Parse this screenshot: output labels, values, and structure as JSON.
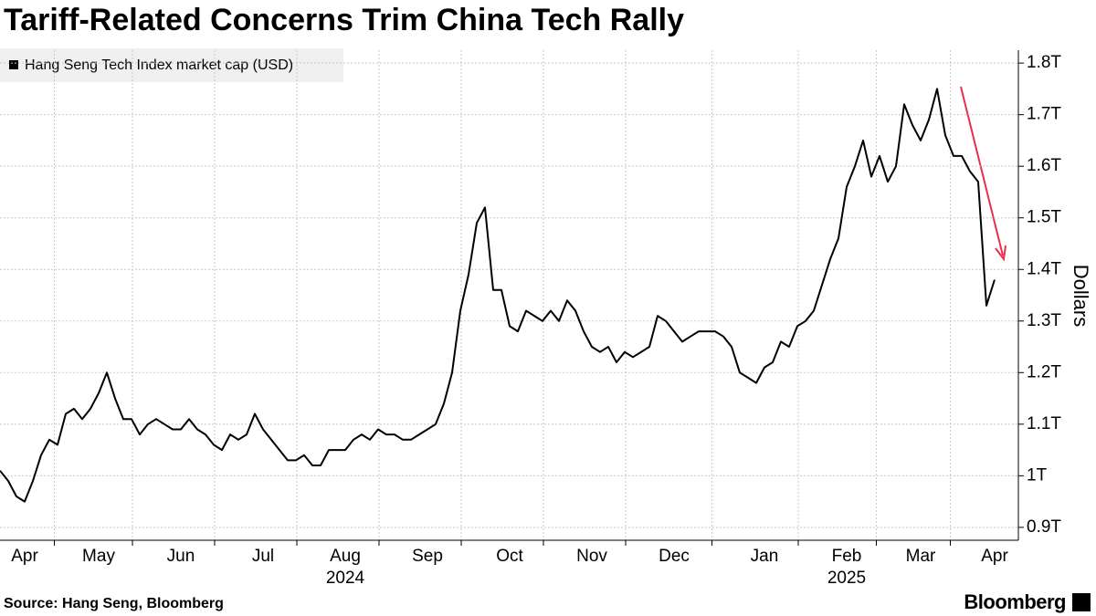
{
  "chart_data": {
    "type": "line",
    "title": "Tariff-Related Concerns Trim China Tech Rally",
    "source": "Source: Hang Seng, Bloomberg",
    "brand": "Bloomberg",
    "y_axis_label": "Dollars",
    "categories": [
      null,
      null,
      null,
      "Apr",
      null,
      null,
      null,
      null,
      null,
      null,
      null,
      null,
      "May",
      null,
      null,
      null,
      null,
      null,
      null,
      null,
      null,
      null,
      "Jun",
      null,
      null,
      null,
      null,
      null,
      null,
      null,
      null,
      null,
      "Jul",
      null,
      null,
      null,
      null,
      null,
      null,
      null,
      null,
      null,
      "Aug",
      null,
      null,
      null,
      null,
      null,
      null,
      null,
      null,
      null,
      "Sep",
      null,
      null,
      null,
      null,
      null,
      null,
      null,
      null,
      null,
      "Oct",
      null,
      null,
      null,
      null,
      null,
      null,
      null,
      null,
      null,
      "Nov",
      null,
      null,
      null,
      null,
      null,
      null,
      null,
      null,
      null,
      "Dec",
      null,
      null,
      null,
      null,
      null,
      null,
      null,
      null,
      null,
      null,
      "Jan",
      null,
      null,
      null,
      null,
      null,
      null,
      null,
      null,
      null,
      "Feb",
      null,
      null,
      null,
      null,
      null,
      null,
      null,
      null,
      "Mar",
      null,
      null,
      null,
      null,
      null,
      null,
      null,
      null,
      "Apr"
    ],
    "category_years": [
      null,
      null,
      null,
      null,
      null,
      null,
      null,
      null,
      null,
      null,
      null,
      null,
      null,
      null,
      null,
      null,
      null,
      null,
      null,
      null,
      null,
      null,
      null,
      null,
      null,
      null,
      null,
      null,
      null,
      null,
      null,
      null,
      null,
      null,
      null,
      null,
      null,
      null,
      null,
      null,
      null,
      null,
      "2024",
      null,
      null,
      null,
      null,
      null,
      null,
      null,
      null,
      null,
      null,
      null,
      null,
      null,
      null,
      null,
      null,
      null,
      null,
      null,
      null,
      null,
      null,
      null,
      null,
      null,
      null,
      null,
      null,
      null,
      null,
      null,
      null,
      null,
      null,
      null,
      null,
      null,
      null,
      null,
      null,
      null,
      null,
      null,
      null,
      null,
      null,
      null,
      null,
      null,
      null,
      null,
      null,
      null,
      null,
      null,
      null,
      null,
      null,
      null,
      null,
      "2025",
      null,
      null,
      null,
      null,
      null,
      null,
      null,
      null,
      null,
      null,
      null,
      null,
      null,
      null,
      null,
      null,
      null,
      null
    ],
    "series": [
      {
        "name": "Hang Seng Tech Index market cap (USD)",
        "color": "#000000",
        "values": [
          1.01,
          0.99,
          0.96,
          0.95,
          0.99,
          1.04,
          1.07,
          1.06,
          1.12,
          1.13,
          1.11,
          1.13,
          1.16,
          1.2,
          1.15,
          1.11,
          1.11,
          1.08,
          1.1,
          1.11,
          1.1,
          1.09,
          1.09,
          1.11,
          1.09,
          1.08,
          1.06,
          1.05,
          1.08,
          1.07,
          1.08,
          1.12,
          1.09,
          1.07,
          1.05,
          1.03,
          1.03,
          1.04,
          1.02,
          1.02,
          1.05,
          1.05,
          1.05,
          1.07,
          1.08,
          1.07,
          1.09,
          1.08,
          1.08,
          1.07,
          1.07,
          1.08,
          1.09,
          1.1,
          1.14,
          1.2,
          1.32,
          1.39,
          1.49,
          1.52,
          1.36,
          1.36,
          1.29,
          1.28,
          1.32,
          1.31,
          1.3,
          1.32,
          1.3,
          1.34,
          1.32,
          1.28,
          1.25,
          1.24,
          1.25,
          1.22,
          1.24,
          1.23,
          1.24,
          1.25,
          1.31,
          1.3,
          1.28,
          1.26,
          1.27,
          1.28,
          1.28,
          1.28,
          1.27,
          1.25,
          1.2,
          1.19,
          1.18,
          1.21,
          1.22,
          1.26,
          1.25,
          1.29,
          1.3,
          1.32,
          1.37,
          1.42,
          1.46,
          1.56,
          1.6,
          1.65,
          1.58,
          1.62,
          1.57,
          1.6,
          1.72,
          1.68,
          1.65,
          1.69,
          1.75,
          1.66,
          1.62,
          1.62,
          1.59,
          1.57,
          1.33,
          1.38
        ]
      }
    ],
    "ylim": [
      0.875,
      1.825
    ],
    "yticks": [
      {
        "value": 0.9,
        "label": "0.9T"
      },
      {
        "value": 1,
        "label": "1T"
      },
      {
        "value": 1.1,
        "label": "1.1T"
      },
      {
        "value": 1.2,
        "label": "1.2T"
      },
      {
        "value": 1.3,
        "label": "1.3T"
      },
      {
        "value": 1.4,
        "label": "1.4T"
      },
      {
        "value": 1.5,
        "label": "1.5T"
      },
      {
        "value": 1.6,
        "label": "1.6T"
      },
      {
        "value": 1.7,
        "label": "1.7T"
      },
      {
        "value": 1.8,
        "label": "1.8T"
      }
    ],
    "grid": true
  }
}
